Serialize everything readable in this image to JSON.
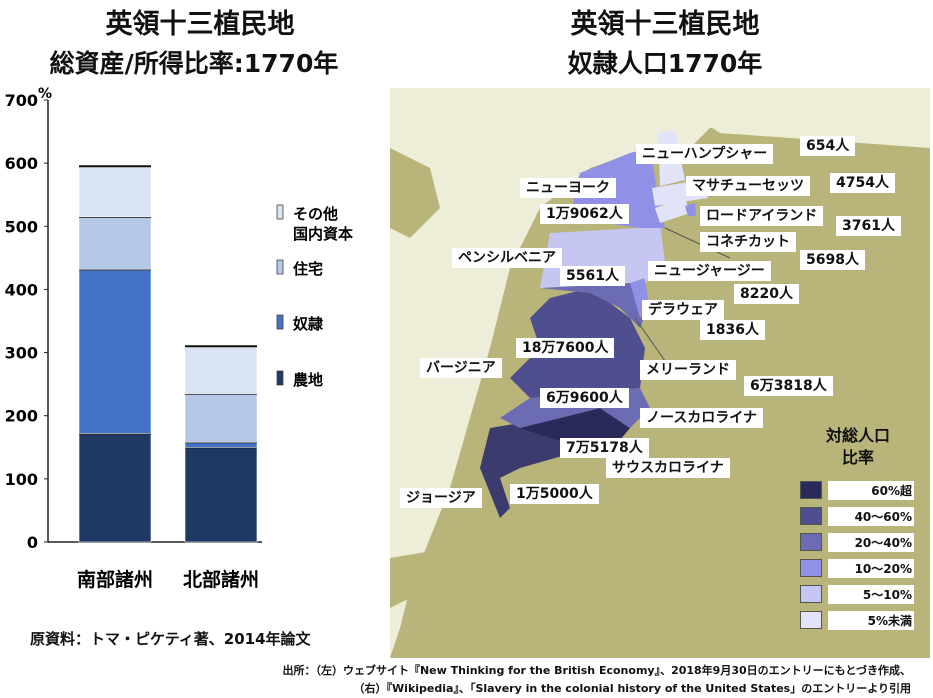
{
  "left": {
    "title": "英領十三植民地",
    "subtitle": "総資産/所得比率:1770年",
    "source": "原資料：トマ・ピケティ著、2014年論文"
  },
  "right": {
    "title": "英領十三植民地",
    "subtitle": "奴隷人口1770年"
  },
  "footer": {
    "line1": "出所：（左）ウェブサイト『New Thinking for the British Economy』、2018年9月30日のエントリーにもとづき作成、",
    "line2": "（右）『Wikipedia』、「Slavery in the colonial history of the United States」のエントリーより引用"
  },
  "chart_data": [
    {
      "type": "bar",
      "stacked": true,
      "categories": [
        "南部諸州",
        "北部諸州"
      ],
      "y_unit": "%",
      "ylim": [
        0,
        700
      ],
      "yticks": [
        "0",
        "100",
        "200",
        "300",
        "400",
        "500",
        "600",
        "700"
      ],
      "series": [
        {
          "name": "農地",
          "values": [
            172,
            150
          ],
          "color": "#1f3864"
        },
        {
          "name": "奴隷",
          "values": [
            260,
            8
          ],
          "color": "#4472c4"
        },
        {
          "name": "住宅",
          "values": [
            83,
            77
          ],
          "color": "#b4c7e7"
        },
        {
          "name": "その他国内資本",
          "values": [
            80,
            75
          ],
          "color": "#dae3f3"
        }
      ],
      "legend": [
        {
          "name": "その他",
          "name2": "国内資本",
          "color": "#dae3f3"
        },
        {
          "name": "住宅",
          "color": "#b4c7e7"
        },
        {
          "name": "奴隷",
          "color": "#4472c4"
        },
        {
          "name": "農地",
          "color": "#1f3864"
        }
      ],
      "legend_position": "right"
    },
    {
      "type": "map",
      "colonies": [
        {
          "name": "ニューハンプシャー",
          "slaves": "654人"
        },
        {
          "name": "マサチューセッツ",
          "slaves": "4754人"
        },
        {
          "name": "ニューヨーク",
          "slaves": "1万9062人"
        },
        {
          "name": "ロードアイランド",
          "slaves": "3761人"
        },
        {
          "name": "コネチカット",
          "slaves": "5698人"
        },
        {
          "name": "ペンシルベニア",
          "slaves": "5561人"
        },
        {
          "name": "ニュージャージー",
          "slaves": "8220人"
        },
        {
          "name": "デラウェア",
          "slaves": "1836人"
        },
        {
          "name": "バージニア",
          "slaves": "18万7600人"
        },
        {
          "name": "メリーランド",
          "slaves": "6万3818人"
        },
        {
          "name": "ノースカロライナ",
          "slaves": "6万9600人"
        },
        {
          "name": "サウスカロライナ",
          "slaves": "7万5178人"
        },
        {
          "name": "ジョージア",
          "slaves": "1万5000人"
        }
      ],
      "legend_title": [
        "対総人口",
        "比率"
      ],
      "legend": [
        {
          "label": "60%超",
          "color": "#2a2a5a"
        },
        {
          "label": "40～60%",
          "color": "#4f4f8f"
        },
        {
          "label": "20～40%",
          "color": "#6c6cb4"
        },
        {
          "label": "10～20%",
          "color": "#9090e6"
        },
        {
          "label": "5～10%",
          "color": "#c6c6f2"
        },
        {
          "label": "5%未満",
          "color": "#e2e2f8"
        }
      ]
    }
  ]
}
